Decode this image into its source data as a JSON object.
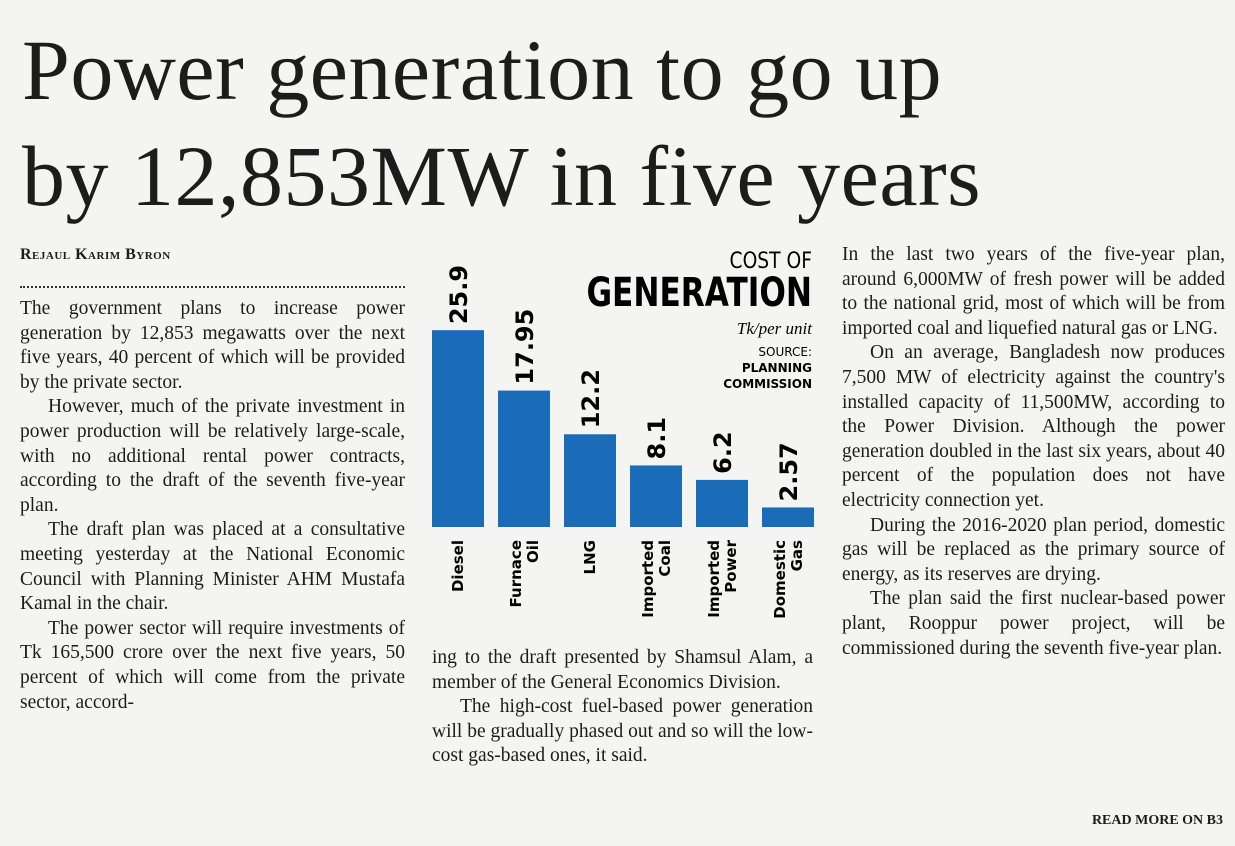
{
  "headline": [
    "Power generation to go up",
    "by 12,853MW in five years"
  ],
  "byline": "Rejaul Karim Byron",
  "columns": [
    [
      "The government plans to increase power generation by 12,853 megawatts over the next five years, 40 percent of which will be provided by the private sector.",
      "However, much of the private investment in power production will be relatively large-scale, with no additional rental power contracts, according to the draft of the seventh five-year plan.",
      "The draft plan was placed at a consultative meeting yesterday at the National Economic Council with Planning Minister AHM Mustafa Kamal in the chair.",
      "The power sector will require investments of Tk 165,500 crore over the next five years, 50 percent of which will come from the private sector, accord-"
    ],
    [
      "ing to the draft presented by Shamsul Alam, a member of the General Economics Division.",
      "The high-cost fuel-based power generation will be gradually phased out and so will the low-cost gas-based ones, it said."
    ],
    [
      "In the last two years of the five-year plan, around 6,000MW of fresh power will be added to the national grid, most of which will be from imported coal and liquefied natural gas or LNG.",
      "On an average, Bangladesh now produces 7,500 MW of electricity against the country's installed capacity of 11,500MW, according to the Power Division. Although the power generation doubled in the last six years, about 40 percent of the population does not have electricity connection yet.",
      "During the 2016-2020 plan period, domestic gas will be replaced as the primary source of energy, as its reserves are drying.",
      "The plan said the first nuclear-based power plant, Rooppur power project, will be commissioned during the seventh five-year plan."
    ]
  ],
  "read_more": "READ MORE ON B3",
  "chart": {
    "type": "bar",
    "title_small": "COST OF",
    "title": "GENERATION",
    "unit": "Tk/per unit",
    "source_label": "SOURCE:",
    "source": [
      "PLANNING",
      "COMMISSION"
    ],
    "categories": [
      [
        "Diesel"
      ],
      [
        "Furnace",
        "Oil"
      ],
      [
        "LNG"
      ],
      [
        "Imported",
        "Coal"
      ],
      [
        "Imported",
        "Power"
      ],
      [
        "Domestic",
        "Gas"
      ]
    ],
    "values": [
      25.9,
      17.95,
      12.2,
      8.1,
      6.2,
      2.57
    ],
    "color": "#1a6cb8"
  }
}
